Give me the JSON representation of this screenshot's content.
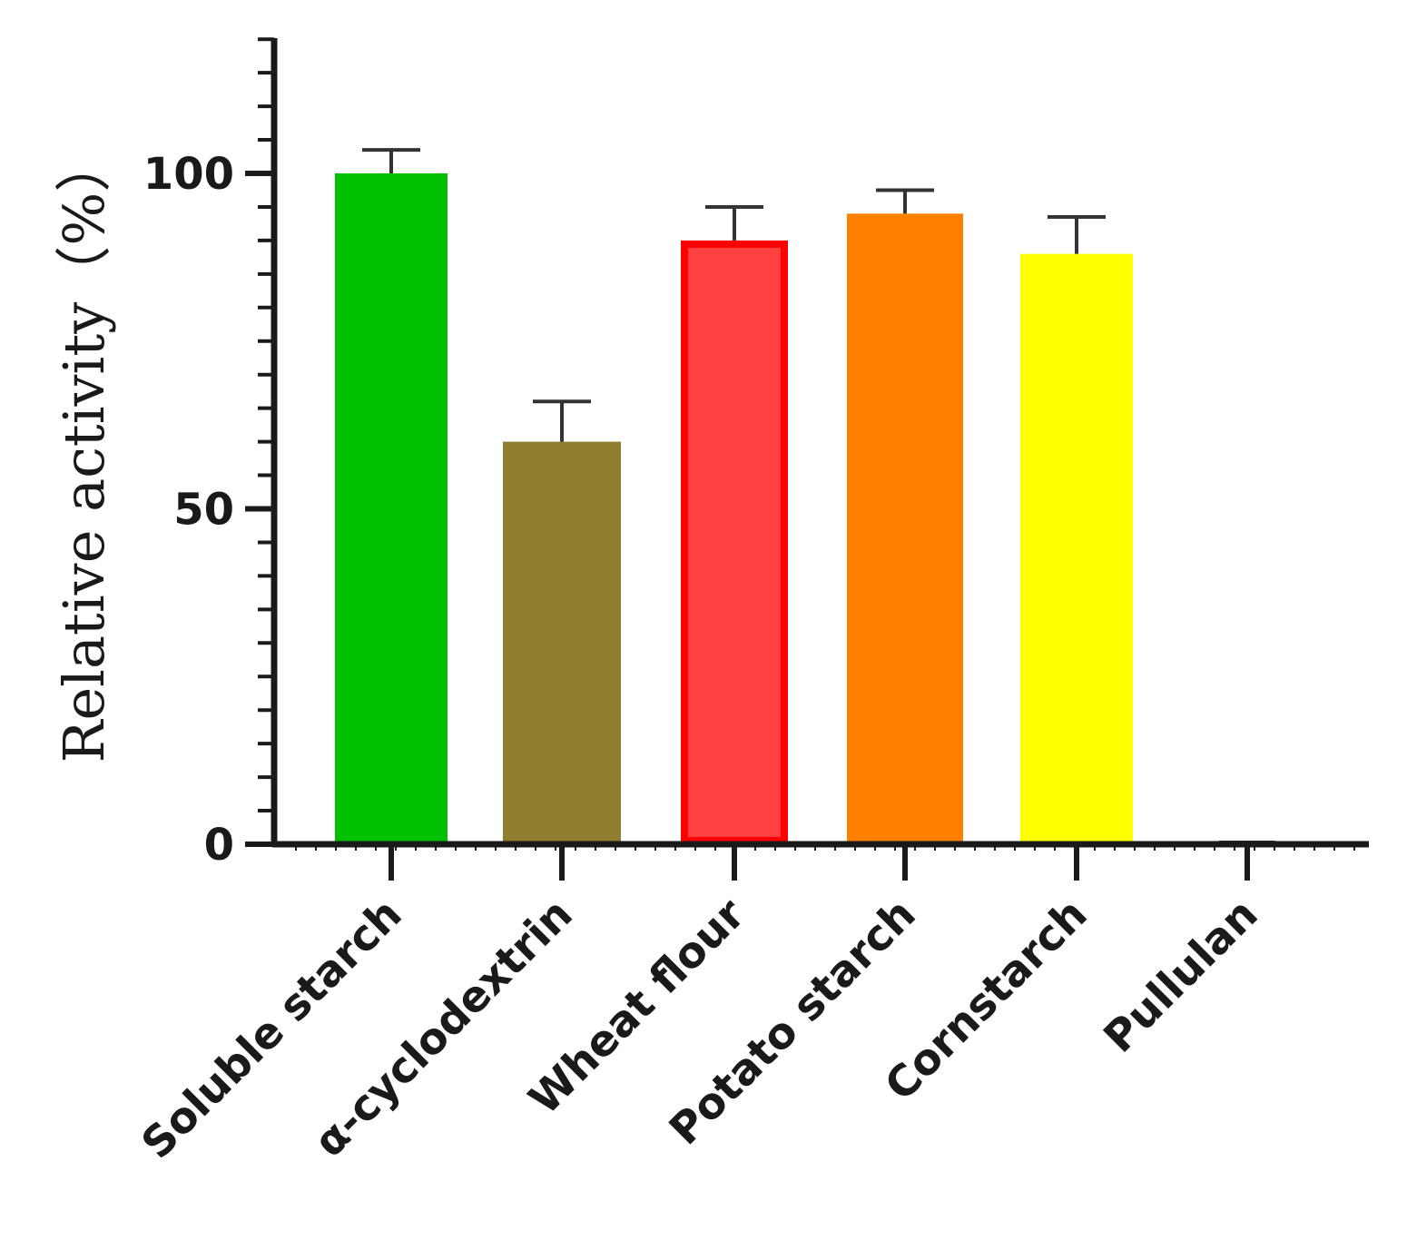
{
  "chart_data": {
    "type": "bar",
    "title": "",
    "xlabel": "",
    "ylabel": "Relative activity（%）",
    "ylim": [
      0,
      120
    ],
    "yticks": [
      0,
      50,
      100
    ],
    "yminor_step": 5,
    "grid": false,
    "legend": "none",
    "categories": [
      "Soluble starch",
      "α-cyclodextrin",
      "Wheat flour",
      "Potato starch",
      "Cornstarch",
      "Pullulan"
    ],
    "values": [
      100,
      60,
      90,
      94,
      88,
      0
    ],
    "errors": [
      3.5,
      6,
      5,
      3.5,
      5.5,
      0
    ],
    "colors": [
      "#00c000",
      "#8f7d30",
      "#ff4040",
      "#ff8000",
      "#ffff00",
      "#000000"
    ],
    "edge_colors": [
      "#00c000",
      "#8f7d30",
      "#ff0000",
      "#ff8000",
      "#ffff00",
      "#000000"
    ]
  }
}
